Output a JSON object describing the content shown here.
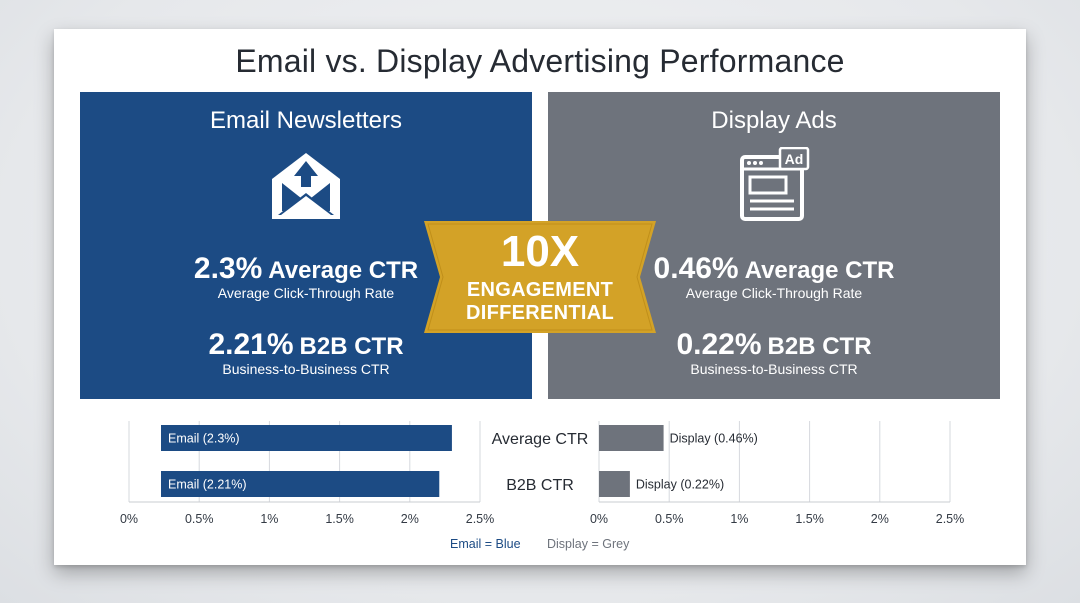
{
  "title": "Email vs. Display Advertising Performance",
  "colors": {
    "email": "#1c4b84",
    "display": "#6e737c",
    "badge": "#d3a227"
  },
  "email_panel": {
    "heading": "Email Newsletters",
    "icon": "envelope-upload-icon",
    "avg_value": "2.3%",
    "avg_suffix": "Average CTR",
    "avg_sub": "Average Click-Through Rate",
    "b2b_value": "2.21%",
    "b2b_suffix": "B2B CTR",
    "b2b_sub": "Business-to-Business CTR"
  },
  "display_panel": {
    "heading": "Display Ads",
    "icon": "browser-ad-icon",
    "icon_label": "Ad",
    "avg_value": "0.46%",
    "avg_suffix": "Average CTR",
    "avg_sub": "Average Click-Through Rate",
    "b2b_value": "0.22%",
    "b2b_suffix": "B2B CTR",
    "b2b_sub": "Business-to-Business CTR"
  },
  "badge": {
    "big": "10X",
    "line1": "ENGAGEMENT",
    "line2": "DIFFERENTIAL"
  },
  "chart_data": {
    "type": "bar",
    "orientation": "horizontal",
    "categories": [
      "Average CTR",
      "B2B CTR"
    ],
    "series": [
      {
        "name": "Email",
        "values": [
          2.3,
          2.21
        ],
        "labels": [
          "Email (2.3%)",
          "Email (2.21%)"
        ]
      },
      {
        "name": "Display",
        "values": [
          0.46,
          0.22
        ],
        "labels": [
          "Display (0.46%)",
          "Display (0.22%)"
        ]
      }
    ],
    "xlim": [
      0,
      2.5
    ],
    "ticks": [
      "0%",
      "0.5%",
      "1%",
      "1.5%",
      "2%",
      "2.5%"
    ],
    "grid": true
  },
  "legend": {
    "email": "Email = Blue",
    "display": "Display = Grey"
  }
}
